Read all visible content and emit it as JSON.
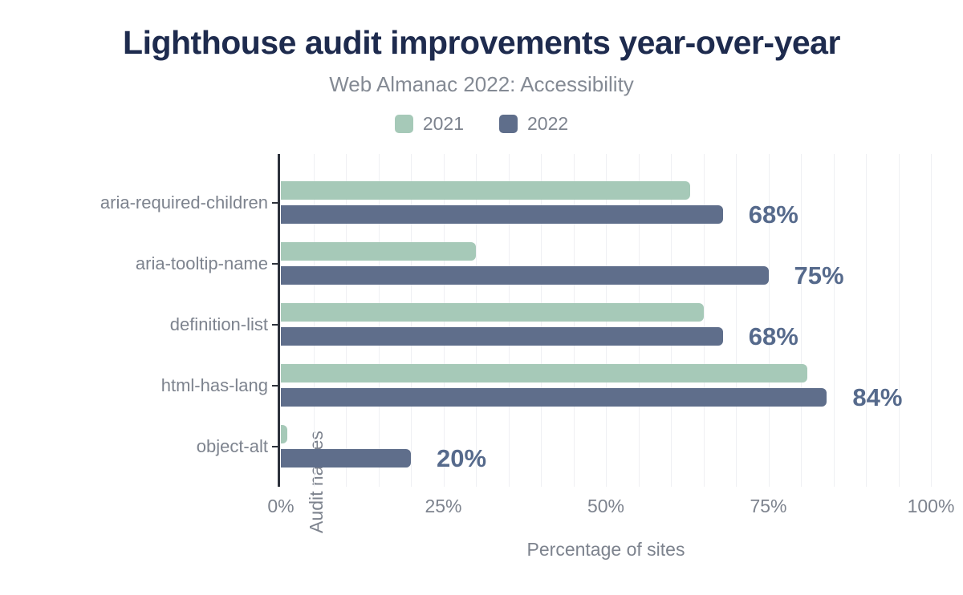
{
  "header": {
    "title": "Lighthouse audit improvements year-over-year",
    "subtitle": "Web Almanac 2022: Accessibility"
  },
  "chart_data": {
    "type": "bar",
    "orientation": "horizontal",
    "title": "Lighthouse audit improvements year-over-year",
    "subtitle": "Web Almanac 2022: Accessibility",
    "categories": [
      "aria-required-children",
      "aria-tooltip-name",
      "definition-list",
      "html-has-lang",
      "object-alt"
    ],
    "series": [
      {
        "name": "2021",
        "color": "#a6c9b8",
        "values": [
          63,
          30,
          65,
          81,
          1
        ]
      },
      {
        "name": "2022",
        "color": "#5f6e8b",
        "values": [
          68,
          75,
          68,
          84,
          20
        ]
      }
    ],
    "value_labels": [
      "68%",
      "75%",
      "68%",
      "84%",
      "20%"
    ],
    "xlabel": "Percentage of sites",
    "ylabel": "Audit names",
    "xlim": [
      0,
      100
    ],
    "xticks": [
      {
        "value": 0,
        "label": "0%"
      },
      {
        "value": 25,
        "label": "25%"
      },
      {
        "value": 50,
        "label": "50%"
      },
      {
        "value": 75,
        "label": "75%"
      },
      {
        "value": 100,
        "label": "100%"
      }
    ],
    "grid": {
      "show": true,
      "interval": 5
    },
    "legend_position": "top"
  },
  "colors": {
    "title": "#1e2b4e",
    "muted_text": "#7d838e",
    "subtitle_text": "#848a94",
    "value_label": "#566a8c",
    "gridline": "#eff0f3",
    "axis": "#2d323c",
    "background": "#ffffff",
    "series_2021": "#a6c9b8",
    "series_2022": "#5f6e8b"
  }
}
